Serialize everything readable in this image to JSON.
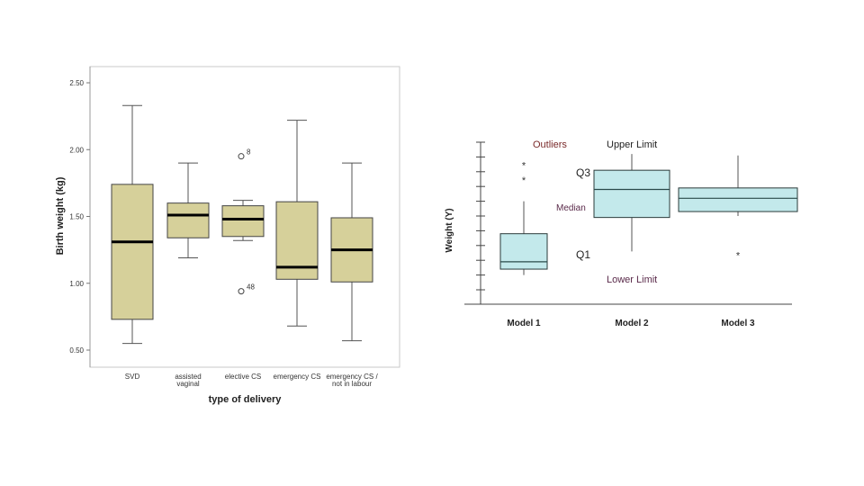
{
  "chart_data": [
    {
      "type": "boxplot",
      "xlabel": "type of delivery",
      "ylabel": "Birth weight (kg)",
      "ylim": [
        0.5,
        2.5
      ],
      "y_ticks": [
        "0.50",
        "1.00",
        "1.50",
        "2.00",
        "2.50"
      ],
      "y_tick_values": [
        0.5,
        1.0,
        1.5,
        2.0,
        2.5
      ],
      "colors": {
        "box_fill": "#d6d09a",
        "box_stroke": "#444444",
        "frame": "#c9c9c9"
      },
      "categories": [
        {
          "label_lines": [
            "SVD"
          ],
          "min": 0.55,
          "q1": 0.73,
          "median": 1.31,
          "q3": 1.74,
          "max": 2.33,
          "outliers": []
        },
        {
          "label_lines": [
            "assisted",
            "vaginal"
          ],
          "min": 1.19,
          "q1": 1.34,
          "median": 1.51,
          "q3": 1.6,
          "max": 1.9,
          "outliers": []
        },
        {
          "label_lines": [
            "elective CS"
          ],
          "min": 1.32,
          "q1": 1.35,
          "median": 1.48,
          "q3": 1.58,
          "max": 1.62,
          "outliers": [
            {
              "value": 1.95,
              "label": "8"
            },
            {
              "value": 0.94,
              "label": "48"
            }
          ]
        },
        {
          "label_lines": [
            "emergency CS"
          ],
          "min": 0.68,
          "q1": 1.03,
          "median": 1.12,
          "q3": 1.61,
          "max": 2.22,
          "outliers": []
        },
        {
          "label_lines": [
            "emergency CS /",
            "not in labour"
          ],
          "min": 0.57,
          "q1": 1.01,
          "median": 1.25,
          "q3": 1.49,
          "max": 1.9,
          "outliers": []
        }
      ]
    },
    {
      "type": "boxplot",
      "ylabel": "Weight (Y)",
      "colors": {
        "box_fill": "#c3e9eb",
        "box_stroke": "#2a3a3a",
        "annotation_dark_red": "#7a2a2a"
      },
      "categories": [
        {
          "label": "Model 1",
          "min": 1.0,
          "q1": 1.4,
          "median": 1.9,
          "q3": 3.8,
          "max": 6.0,
          "outliers": [
            7.5,
            8.5
          ]
        },
        {
          "label": "Model 2",
          "min": 2.6,
          "q1": 4.9,
          "median": 6.8,
          "q3": 8.1,
          "max": 9.2,
          "outliers": []
        },
        {
          "label": "Model 3",
          "min": 5.0,
          "q1": 5.3,
          "median": 6.2,
          "q3": 6.9,
          "max": 9.1,
          "outliers": [
            2.4
          ]
        }
      ],
      "annotations": {
        "outliers": "Outliers",
        "upper_limit": "Upper Limit",
        "q3": "Q3",
        "median": "Median",
        "q1": "Q1",
        "lower_limit": "Lower Limit"
      }
    }
  ]
}
